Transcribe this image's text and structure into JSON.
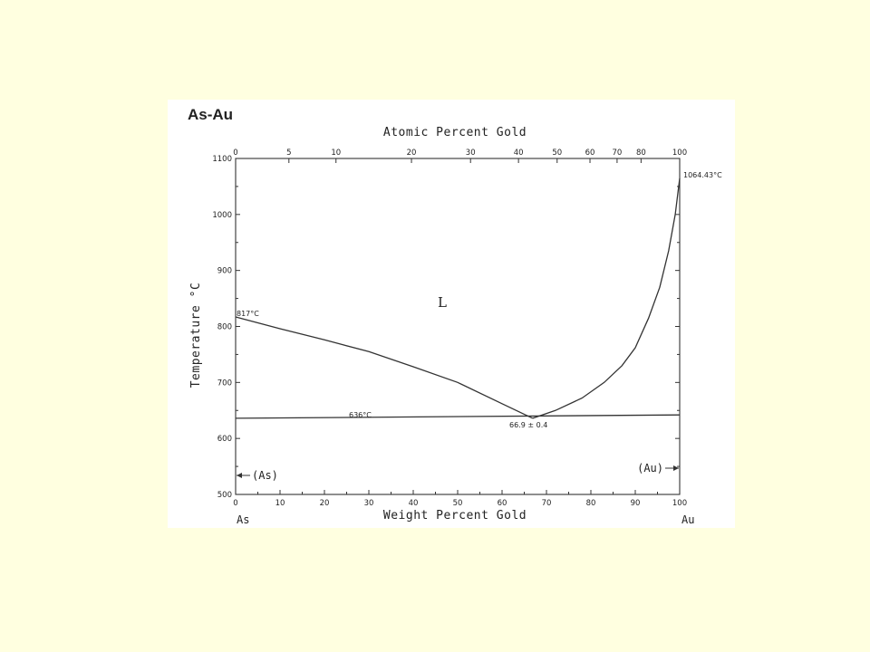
{
  "chart_data": {
    "type": "line",
    "title": "As-Au",
    "xlabel": "Weight Percent Gold",
    "x2label": "Atomic Percent Gold",
    "ylabel": "Temperature",
    "ylabel_unit": "°C",
    "xlim": [
      0,
      100
    ],
    "ylim": [
      500,
      1100
    ],
    "x_ticks": [
      0,
      10,
      20,
      30,
      40,
      50,
      60,
      70,
      80,
      90,
      100
    ],
    "y_ticks": [
      500,
      600,
      700,
      800,
      900,
      1000,
      1100
    ],
    "top_ticks": [
      {
        "label": "0",
        "wt": 0
      },
      {
        "label": "5",
        "wt": 12
      },
      {
        "label": "10",
        "wt": 22.6
      },
      {
        "label": "20",
        "wt": 39.6
      },
      {
        "label": "30",
        "wt": 52.9
      },
      {
        "label": "40",
        "wt": 63.7
      },
      {
        "label": "50",
        "wt": 72.4
      },
      {
        "label": "60",
        "wt": 79.8
      },
      {
        "label": "70",
        "wt": 85.9
      },
      {
        "label": "80",
        "wt": 91.3
      },
      {
        "label": "100",
        "wt": 100
      }
    ],
    "series": [
      {
        "values": [
          {
            "x": 0,
            "y": 817
          },
          {
            "x": 10,
            "y": 796
          },
          {
            "x": 20,
            "y": 776
          },
          {
            "x": 30,
            "y": 755
          },
          {
            "x": 40,
            "y": 728
          },
          {
            "x": 50,
            "y": 700
          },
          {
            "x": 60,
            "y": 662
          },
          {
            "x": 66.9,
            "y": 636
          }
        ]
      },
      {
        "values": [
          {
            "x": 66.9,
            "y": 636
          },
          {
            "x": 72,
            "y": 650
          },
          {
            "x": 78,
            "y": 672
          },
          {
            "x": 83,
            "y": 700
          },
          {
            "x": 87,
            "y": 730
          },
          {
            "x": 90,
            "y": 762
          },
          {
            "x": 93,
            "y": 815
          },
          {
            "x": 95.5,
            "y": 870
          },
          {
            "x": 97.5,
            "y": 935
          },
          {
            "x": 99,
            "y": 1000
          },
          {
            "x": 100,
            "y": 1064.43
          }
        ]
      },
      {
        "values": [
          {
            "x": 0,
            "y": 636
          },
          {
            "x": 100,
            "y": 642
          }
        ]
      }
    ],
    "annotations": {
      "as_melt": "817°C",
      "au_melt": "1064.43°C",
      "eutectic_temp": "636°C",
      "eutectic_comp": "66.9 ± 0.4",
      "liquid": "L",
      "left_phase": "(As)",
      "right_phase": "(Au)",
      "left_element": "As",
      "right_element": "Au"
    }
  }
}
